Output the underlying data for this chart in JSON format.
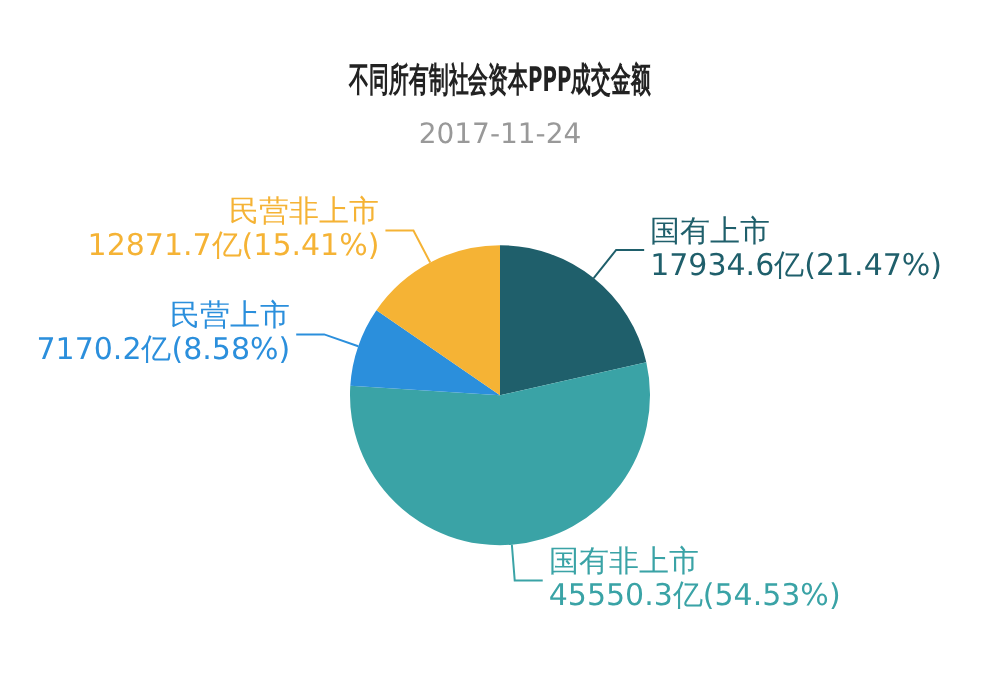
{
  "chart_data": {
    "type": "pie",
    "title": "不同所有制社会资本PPP成交金额",
    "subtitle": "2017-11-24",
    "categories": [
      "国有上市",
      "国有非上市",
      "民营上市",
      "民营非上市"
    ],
    "values": [
      17934.6,
      45550.3,
      7170.2,
      12871.7
    ],
    "colors": [
      "#1f5f6b",
      "#3aa3a6",
      "#2b8fdc",
      "#f5b335"
    ],
    "value_labels": [
      "17934.6亿(21.47%)",
      "45550.3亿(54.53%)",
      "7170.2亿(8.58%)",
      "12871.7亿(15.41%)"
    ],
    "legend": false
  }
}
